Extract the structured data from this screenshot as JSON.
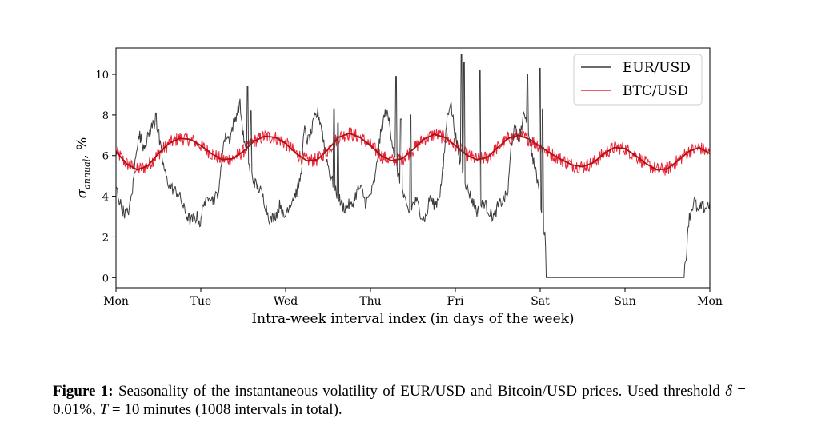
{
  "chart_data": {
    "type": "line",
    "xlabel": "Intra-week interval index (in days of the week)",
    "ylabel": "σannual, %",
    "ylabel_main": "σ",
    "ylabel_sub": "annual",
    "ylabel_suffix": ", %",
    "x_tick_labels": [
      "Mon",
      "Tue",
      "Wed",
      "Thu",
      "Fri",
      "Sat",
      "Sun",
      "Mon"
    ],
    "xlim": [
      0,
      7
    ],
    "ylim": [
      -0.5,
      11.3
    ],
    "y_ticks": [
      0,
      2,
      4,
      6,
      8,
      10
    ],
    "y_tick_labels": [
      "0",
      "2",
      "4",
      "6",
      "8",
      "10"
    ],
    "grid": false,
    "legend_position": "top-right",
    "series": [
      {
        "name": "EUR/USD",
        "color": "#3c3c3c",
        "points": [
          [
            0.0,
            4.5
          ],
          [
            0.04,
            3.8
          ],
          [
            0.08,
            3.3
          ],
          [
            0.12,
            3.1
          ],
          [
            0.16,
            3.4
          ],
          [
            0.2,
            4.5
          ],
          [
            0.24,
            6.4
          ],
          [
            0.28,
            7.0
          ],
          [
            0.32,
            6.5
          ],
          [
            0.36,
            6.7
          ],
          [
            0.4,
            7.2
          ],
          [
            0.44,
            7.6
          ],
          [
            0.48,
            7.5
          ],
          [
            0.52,
            6.5
          ],
          [
            0.56,
            5.5
          ],
          [
            0.6,
            4.8
          ],
          [
            0.64,
            4.5
          ],
          [
            0.68,
            4.3
          ],
          [
            0.72,
            4.2
          ],
          [
            0.76,
            3.9
          ],
          [
            0.8,
            3.4
          ],
          [
            0.84,
            3.0
          ],
          [
            0.88,
            2.8
          ],
          [
            0.92,
            2.9
          ],
          [
            0.96,
            3.0
          ],
          [
            1.0,
            2.6
          ],
          [
            1.03,
            3.8
          ],
          [
            1.06,
            3.6
          ],
          [
            1.1,
            4.2
          ],
          [
            1.14,
            3.8
          ],
          [
            1.18,
            4.0
          ],
          [
            1.22,
            4.4
          ],
          [
            1.26,
            6.5
          ],
          [
            1.3,
            7.0
          ],
          [
            1.34,
            6.8
          ],
          [
            1.38,
            7.5
          ],
          [
            1.42,
            8.0
          ],
          [
            1.46,
            8.6
          ],
          [
            1.5,
            7.0
          ],
          [
            1.54,
            6.0
          ],
          [
            1.58,
            5.3
          ],
          [
            1.62,
            4.8
          ],
          [
            1.66,
            4.5
          ],
          [
            1.7,
            4.3
          ],
          [
            1.74,
            3.9
          ],
          [
            1.78,
            3.3
          ],
          [
            1.82,
            2.8
          ],
          [
            1.86,
            3.0
          ],
          [
            1.9,
            3.2
          ],
          [
            1.94,
            3.7
          ],
          [
            1.98,
            2.8
          ],
          [
            2.02,
            3.4
          ],
          [
            2.06,
            3.7
          ],
          [
            2.1,
            4.0
          ],
          [
            2.14,
            4.3
          ],
          [
            2.18,
            5.0
          ],
          [
            2.22,
            7.3
          ],
          [
            2.26,
            6.7
          ],
          [
            2.3,
            7.1
          ],
          [
            2.34,
            7.8
          ],
          [
            2.38,
            8.1
          ],
          [
            2.42,
            7.5
          ],
          [
            2.46,
            6.4
          ],
          [
            2.5,
            5.5
          ],
          [
            2.54,
            4.9
          ],
          [
            2.58,
            4.3
          ],
          [
            2.62,
            4.0
          ],
          [
            2.66,
            3.6
          ],
          [
            2.7,
            3.4
          ],
          [
            2.74,
            3.6
          ],
          [
            2.78,
            3.5
          ],
          [
            2.82,
            4.0
          ],
          [
            2.86,
            4.4
          ],
          [
            2.9,
            4.3
          ],
          [
            2.94,
            3.7
          ],
          [
            2.98,
            3.9
          ],
          [
            3.02,
            4.3
          ],
          [
            3.06,
            5.0
          ],
          [
            3.1,
            6.5
          ],
          [
            3.14,
            7.5
          ],
          [
            3.18,
            8.2
          ],
          [
            3.22,
            7.7
          ],
          [
            3.26,
            6.6
          ],
          [
            3.3,
            5.6
          ],
          [
            3.34,
            4.8
          ],
          [
            3.38,
            4.2
          ],
          [
            3.42,
            3.5
          ],
          [
            3.46,
            3.2
          ],
          [
            3.5,
            3.6
          ],
          [
            3.54,
            3.8
          ],
          [
            3.58,
            3.3
          ],
          [
            3.62,
            2.9
          ],
          [
            3.66,
            3.0
          ],
          [
            3.7,
            4.0
          ],
          [
            3.74,
            3.6
          ],
          [
            3.78,
            3.7
          ],
          [
            3.82,
            4.2
          ],
          [
            3.86,
            5.5
          ],
          [
            3.9,
            7.8
          ],
          [
            3.94,
            8.7
          ],
          [
            3.98,
            7.6
          ],
          [
            4.02,
            6.5
          ],
          [
            4.06,
            5.6
          ],
          [
            4.1,
            5.0
          ],
          [
            4.14,
            4.4
          ],
          [
            4.18,
            4.0
          ],
          [
            4.22,
            3.6
          ],
          [
            4.26,
            3.2
          ],
          [
            4.3,
            3.5
          ],
          [
            4.34,
            3.7
          ],
          [
            4.38,
            3.4
          ],
          [
            4.42,
            3.1
          ],
          [
            4.46,
            3.0
          ],
          [
            4.5,
            3.5
          ],
          [
            4.54,
            3.7
          ],
          [
            4.58,
            3.9
          ],
          [
            4.62,
            4.2
          ],
          [
            4.66,
            6.6
          ],
          [
            4.7,
            7.3
          ],
          [
            4.74,
            6.9
          ],
          [
            4.78,
            7.4
          ],
          [
            4.82,
            8.1
          ],
          [
            4.86,
            7.3
          ],
          [
            4.9,
            6.2
          ],
          [
            4.94,
            5.3
          ],
          [
            4.98,
            4.5
          ],
          [
            5.0,
            3.9
          ],
          [
            5.02,
            3.2
          ],
          [
            5.04,
            2.5
          ],
          [
            5.06,
            2.1
          ],
          [
            5.07,
            0.0
          ],
          [
            6.0,
            0.0
          ],
          [
            6.64,
            0.0
          ],
          [
            6.68,
            0.0
          ],
          [
            6.7,
            0.3
          ],
          [
            6.72,
            0.8
          ],
          [
            6.74,
            2.5
          ],
          [
            6.76,
            3.0
          ],
          [
            6.78,
            3.3
          ],
          [
            6.82,
            3.8
          ],
          [
            6.86,
            3.2
          ],
          [
            6.9,
            3.5
          ],
          [
            6.94,
            3.4
          ],
          [
            6.98,
            3.6
          ],
          [
            7.0,
            3.6
          ]
        ],
        "spikes": [
          [
            0.47,
            8.1
          ],
          [
            0.5,
            7.3
          ],
          [
            1.55,
            9.4
          ],
          [
            1.59,
            8.2
          ],
          [
            2.57,
            8.3
          ],
          [
            2.62,
            7.6
          ],
          [
            3.3,
            9.9
          ],
          [
            3.36,
            7.8
          ],
          [
            3.47,
            8.0
          ],
          [
            4.07,
            11.0
          ],
          [
            4.1,
            10.6
          ],
          [
            4.29,
            10.2
          ],
          [
            4.85,
            10.0
          ],
          [
            5.0,
            10.3
          ],
          [
            5.03,
            8.3
          ]
        ]
      },
      {
        "name": "BTC/USD",
        "color": "#e8253a",
        "mean": 6.1,
        "noise": 0.35,
        "smooth_color": "#b40d0d"
      }
    ],
    "smooth_curve_points": [
      [
        0.0,
        6.2
      ],
      [
        0.125,
        5.6
      ],
      [
        0.25,
        5.3
      ],
      [
        0.375,
        5.5
      ],
      [
        0.5,
        6.1
      ],
      [
        0.625,
        6.6
      ],
      [
        0.75,
        6.85
      ],
      [
        0.875,
        6.8
      ],
      [
        1.0,
        6.5
      ],
      [
        1.125,
        6.1
      ],
      [
        1.25,
        5.8
      ],
      [
        1.375,
        5.85
      ],
      [
        1.5,
        6.2
      ],
      [
        1.625,
        6.7
      ],
      [
        1.75,
        6.95
      ],
      [
        1.875,
        6.9
      ],
      [
        2.0,
        6.6
      ],
      [
        2.125,
        6.1
      ],
      [
        2.25,
        5.75
      ],
      [
        2.375,
        5.8
      ],
      [
        2.5,
        6.3
      ],
      [
        2.625,
        6.9
      ],
      [
        2.75,
        7.1
      ],
      [
        2.875,
        6.9
      ],
      [
        3.0,
        6.5
      ],
      [
        3.125,
        6.0
      ],
      [
        3.25,
        5.75
      ],
      [
        3.375,
        5.85
      ],
      [
        3.5,
        6.3
      ],
      [
        3.625,
        6.8
      ],
      [
        3.75,
        7.05
      ],
      [
        3.875,
        6.9
      ],
      [
        4.0,
        6.5
      ],
      [
        4.125,
        6.05
      ],
      [
        4.25,
        5.8
      ],
      [
        4.375,
        5.9
      ],
      [
        4.5,
        6.4
      ],
      [
        4.625,
        6.85
      ],
      [
        4.75,
        7.0
      ],
      [
        4.875,
        6.8
      ],
      [
        5.0,
        6.45
      ],
      [
        5.125,
        6.1
      ],
      [
        5.25,
        5.8
      ],
      [
        5.375,
        5.55
      ],
      [
        5.5,
        5.45
      ],
      [
        5.625,
        5.65
      ],
      [
        5.75,
        6.1
      ],
      [
        5.875,
        6.4
      ],
      [
        6.0,
        6.35
      ],
      [
        6.125,
        6.0
      ],
      [
        6.25,
        5.6
      ],
      [
        6.375,
        5.3
      ],
      [
        6.5,
        5.35
      ],
      [
        6.625,
        5.75
      ],
      [
        6.75,
        6.2
      ],
      [
        6.875,
        6.4
      ],
      [
        7.0,
        6.1
      ]
    ]
  },
  "caption": {
    "label": "Figure 1:",
    "text_part1": " Seasonality of the instantaneous volatility of EUR/USD and Bitcoin/USD prices.  Used threshold ",
    "delta_symbol": "δ",
    "delta_eq": " = 0.01%, ",
    "t_symbol": "T",
    "t_eq": " = 10 minutes (1008 intervals in total)."
  }
}
